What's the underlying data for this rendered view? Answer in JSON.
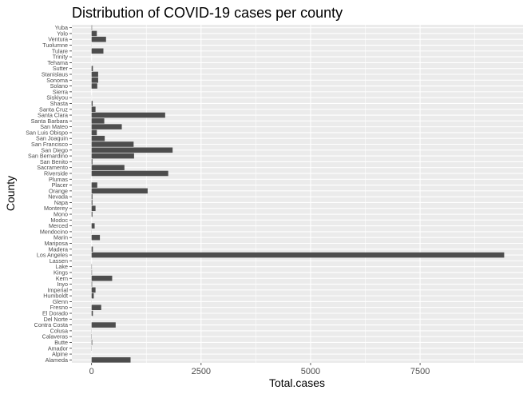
{
  "chart_data": {
    "type": "bar",
    "orientation": "horizontal",
    "title": "Distribution of COVID-19 cases per county",
    "xlabel": "Total.cases",
    "ylabel": "County",
    "xlim": [
      -450,
      9850
    ],
    "xticks": [
      0,
      2500,
      5000,
      7500
    ],
    "xtick_labels": [
      "0",
      "2500",
      "5000",
      "7500"
    ],
    "grid": true,
    "legend": "none",
    "bar_color": "#4d4d4d",
    "panel_color": "#ebebeb",
    "grid_color": "#ffffff",
    "categories": [
      "Alameda",
      "Alpine",
      "Amador",
      "Butte",
      "Calaveras",
      "Colusa",
      "Contra Costa",
      "Del Norte",
      "El Dorado",
      "Fresno",
      "Glenn",
      "Humboldt",
      "Imperial",
      "Inyo",
      "Kern",
      "Kings",
      "Lake",
      "Lassen",
      "Los Angeles",
      "Madera",
      "Mariposa",
      "Marin",
      "Mendocino",
      "Merced",
      "Modoc",
      "Mono",
      "Monterey",
      "Napa",
      "Nevada",
      "Orange",
      "Placer",
      "Plumas",
      "Riverside",
      "Sacramento",
      "San Benito",
      "San Bernardino",
      "San Diego",
      "San Francisco",
      "San Joaquin",
      "San Luis Obispo",
      "San Mateo",
      "Santa Barbara",
      "Santa Clara",
      "Santa Cruz",
      "Shasta",
      "Siskiyou",
      "Sierra",
      "Solano",
      "Sonoma",
      "Stanislaus",
      "Sutter",
      "Tehama",
      "Trinity",
      "Tulare",
      "Tuolumne",
      "Ventura",
      "Yolo",
      "Yuba"
    ],
    "values": [
      890,
      1,
      4,
      14,
      6,
      3,
      550,
      1,
      30,
      220,
      2,
      50,
      90,
      12,
      470,
      9,
      7,
      0,
      9420,
      30,
      0,
      190,
      3,
      70,
      0,
      20,
      90,
      20,
      20,
      1280,
      130,
      0,
      1750,
      750,
      20,
      970,
      1850,
      960,
      300,
      120,
      690,
      290,
      1680,
      90,
      25,
      1,
      0,
      130,
      150,
      150,
      30,
      1,
      0,
      270,
      2,
      330,
      120,
      10
    ]
  }
}
